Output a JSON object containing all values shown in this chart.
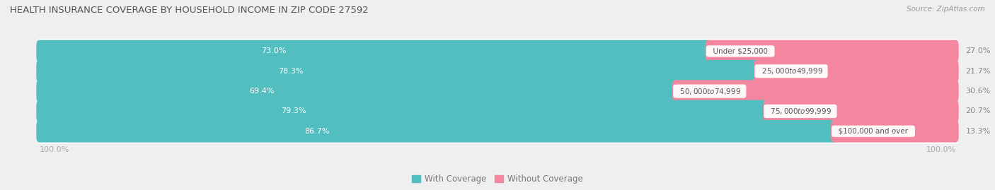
{
  "title": "HEALTH INSURANCE COVERAGE BY HOUSEHOLD INCOME IN ZIP CODE 27592",
  "source": "Source: ZipAtlas.com",
  "categories": [
    "Under $25,000",
    "$25,000 to $49,999",
    "$50,000 to $74,999",
    "$75,000 to $99,999",
    "$100,000 and over"
  ],
  "with_coverage": [
    73.0,
    78.3,
    69.4,
    79.3,
    86.7
  ],
  "without_coverage": [
    27.0,
    21.7,
    30.6,
    20.7,
    13.3
  ],
  "coverage_color": "#52bec0",
  "no_coverage_color": "#f586a0",
  "bg_color": "#efefef",
  "row_bg_color": "#ffffff",
  "row_stripe_color": "#e8e8ee",
  "title_color": "#555555",
  "source_color": "#999999",
  "axis_label_color": "#aaaaaa",
  "center_label_color": "#555555",
  "pct_label_color_left": "#ffffff",
  "pct_label_color_right": "#888888",
  "bar_height": 0.52,
  "figsize": [
    14.06,
    2.69
  ],
  "dpi": 100,
  "xlim": [
    0,
    100
  ],
  "n_rows": 5
}
